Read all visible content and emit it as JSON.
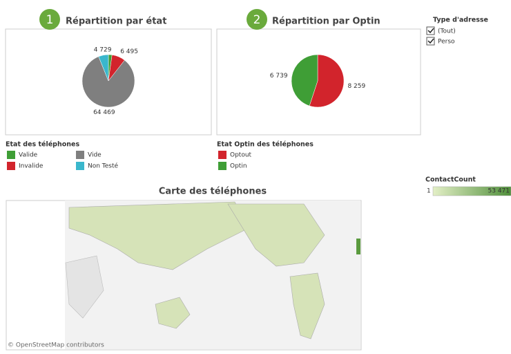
{
  "chart_data": [
    {
      "type": "pie",
      "badge": "1",
      "title": "Répartition par état",
      "legend_title": "Etat des téléphones",
      "categories": [
        "Valide",
        "Invalide",
        "Vide",
        "Non Testé"
      ],
      "values": [
        1700,
        6495,
        64469,
        4729
      ],
      "value_labels": [
        null,
        "6 495",
        "64 469",
        "4 729"
      ],
      "colors": [
        "#3f9e36",
        "#d2242c",
        "#7f7f7f",
        "#3ab7cc"
      ]
    },
    {
      "type": "pie",
      "badge": "2",
      "title": "Répartition par Optin",
      "legend_title": "Etat Optin des téléphones",
      "categories": [
        "Optout",
        "Optin"
      ],
      "values": [
        8259,
        6739
      ],
      "value_labels": [
        "8 259",
        "6 739"
      ],
      "colors": [
        "#d2242c",
        "#3f9e36"
      ]
    }
  ],
  "filter": {
    "title": "Type d'adresse",
    "options": [
      "(Tout)",
      "Perso"
    ]
  },
  "map": {
    "title": "Carte des téléphones",
    "attribution": "© OpenStreetMap contributors"
  },
  "color_legend": {
    "title": "ContactCount",
    "min": "1",
    "max": "53 471"
  }
}
